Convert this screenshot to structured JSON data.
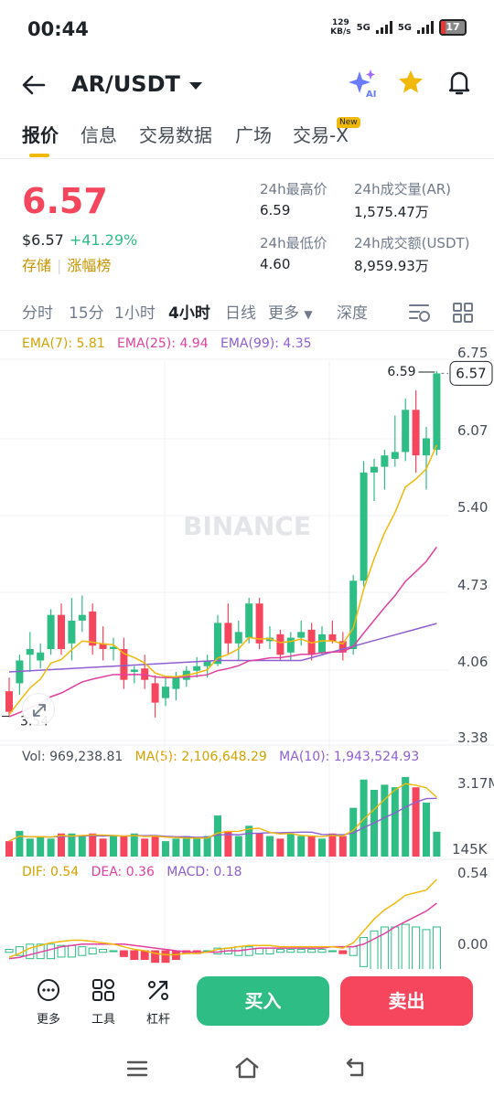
{
  "status_bar": {
    "time": "00:44",
    "net_speed": "129",
    "net_unit": "KB/s",
    "sim1": "5G",
    "sim2": "5G",
    "battery": "17"
  },
  "header": {
    "pair": "AR/USDT",
    "ai_badge": "AI"
  },
  "tabs": [
    {
      "label": "报价",
      "active": true
    },
    {
      "label": "信息"
    },
    {
      "label": "交易数据"
    },
    {
      "label": "广场"
    },
    {
      "label": "交易-X",
      "badge": "New"
    }
  ],
  "ticker": {
    "last_price": "6.57",
    "usd_price": "$6.57",
    "change": "+41.29%",
    "tag1": "存储",
    "tag2": "涨幅榜",
    "high_label": "24h最高价",
    "high": "6.59",
    "low_label": "24h最低价",
    "low": "4.60",
    "vol_ar_label": "24h成交量(AR)",
    "vol_ar": "1,575.47万",
    "vol_usdt_label": "24h成交额(USDT)",
    "vol_usdt": "8,959.93万"
  },
  "timeframes": [
    "分时",
    "15分",
    "1小时",
    "4小时",
    "日线",
    "更多",
    "深度"
  ],
  "active_timeframe": "4小时",
  "indicators": {
    "ema7": "EMA(7): 5.81",
    "ema25": "EMA(25): 4.94",
    "ema99": "EMA(99): 4.35",
    "vol": "Vol: 969,238.81",
    "ma5": "MA(5): 2,106,648.29",
    "ma10": "MA(10): 1,943,524.93",
    "dif": "DIF: 0.54",
    "dea": "DEA: 0.36",
    "macd": "MACD: 0.18"
  },
  "watermark": "BINANCE",
  "colors": {
    "up": "#2ebd85",
    "down": "#f6465d",
    "ema7": "#f0b90b",
    "ema25": "#e040a0",
    "ema99": "#8e5fd0",
    "accent": "#f0b90b"
  },
  "chart_data": {
    "type": "candlestick",
    "price_axis_ticks": [
      "6.75",
      "6.07",
      "5.40",
      "4.73",
      "4.06",
      "3.38"
    ],
    "high_marker": "6.59",
    "low_marker": "3.54",
    "current_price": "6.57",
    "volume_axis_ticks": [
      "3.17M",
      "145K"
    ],
    "macd_axis_ticks": [
      "0.54",
      "0.00"
    ],
    "candles": [
      {
        "o": 3.78,
        "h": 3.9,
        "l": 3.56,
        "c": 3.6
      },
      {
        "o": 3.85,
        "h": 4.1,
        "l": 3.75,
        "c": 4.05
      },
      {
        "o": 4.1,
        "h": 4.3,
        "l": 3.95,
        "c": 4.15
      },
      {
        "o": 4.05,
        "h": 4.2,
        "l": 3.98,
        "c": 4.12
      },
      {
        "o": 4.15,
        "h": 4.5,
        "l": 4.1,
        "c": 4.45
      },
      {
        "o": 4.45,
        "h": 4.55,
        "l": 4.1,
        "c": 4.15
      },
      {
        "o": 4.2,
        "h": 4.6,
        "l": 4.05,
        "c": 4.4
      },
      {
        "o": 4.4,
        "h": 4.62,
        "l": 4.3,
        "c": 4.45
      },
      {
        "o": 4.48,
        "h": 4.55,
        "l": 4.1,
        "c": 4.18
      },
      {
        "o": 4.2,
        "h": 4.35,
        "l": 4.05,
        "c": 4.15
      },
      {
        "o": 4.15,
        "h": 4.25,
        "l": 4.05,
        "c": 4.17
      },
      {
        "o": 4.15,
        "h": 4.25,
        "l": 3.8,
        "c": 3.88
      },
      {
        "o": 3.95,
        "h": 4.0,
        "l": 3.85,
        "c": 3.97
      },
      {
        "o": 3.98,
        "h": 4.1,
        "l": 3.8,
        "c": 3.88
      },
      {
        "o": 3.85,
        "h": 3.92,
        "l": 3.55,
        "c": 3.68
      },
      {
        "o": 3.72,
        "h": 3.9,
        "l": 3.65,
        "c": 3.82
      },
      {
        "o": 3.8,
        "h": 3.95,
        "l": 3.7,
        "c": 3.9
      },
      {
        "o": 3.88,
        "h": 4.0,
        "l": 3.82,
        "c": 3.96
      },
      {
        "o": 3.96,
        "h": 4.08,
        "l": 3.9,
        "c": 4.0
      },
      {
        "o": 4.0,
        "h": 4.1,
        "l": 3.9,
        "c": 4.05
      },
      {
        "o": 4.02,
        "h": 4.45,
        "l": 4.0,
        "c": 4.38
      },
      {
        "o": 4.38,
        "h": 4.55,
        "l": 4.1,
        "c": 4.2
      },
      {
        "o": 4.2,
        "h": 4.4,
        "l": 4.05,
        "c": 4.3
      },
      {
        "o": 4.25,
        "h": 4.6,
        "l": 4.2,
        "c": 4.55
      },
      {
        "o": 4.55,
        "h": 4.6,
        "l": 4.15,
        "c": 4.2
      },
      {
        "o": 4.22,
        "h": 4.35,
        "l": 4.15,
        "c": 4.25
      },
      {
        "o": 4.28,
        "h": 4.32,
        "l": 4.05,
        "c": 4.1
      },
      {
        "o": 4.12,
        "h": 4.3,
        "l": 4.05,
        "c": 4.25
      },
      {
        "o": 4.25,
        "h": 4.4,
        "l": 4.18,
        "c": 4.3
      },
      {
        "o": 4.32,
        "h": 4.38,
        "l": 4.05,
        "c": 4.1
      },
      {
        "o": 4.12,
        "h": 4.35,
        "l": 4.1,
        "c": 4.28
      },
      {
        "o": 4.28,
        "h": 4.4,
        "l": 4.2,
        "c": 4.22
      },
      {
        "o": 4.22,
        "h": 4.3,
        "l": 4.05,
        "c": 4.12
      },
      {
        "o": 4.15,
        "h": 4.8,
        "l": 4.1,
        "c": 4.75
      },
      {
        "o": 4.75,
        "h": 5.8,
        "l": 4.7,
        "c": 5.7
      },
      {
        "o": 5.7,
        "h": 5.82,
        "l": 5.45,
        "c": 5.75
      },
      {
        "o": 5.75,
        "h": 5.9,
        "l": 5.55,
        "c": 5.85
      },
      {
        "o": 5.82,
        "h": 6.2,
        "l": 5.75,
        "c": 5.88
      },
      {
        "o": 5.88,
        "h": 6.35,
        "l": 5.8,
        "c": 6.25
      },
      {
        "o": 6.25,
        "h": 6.42,
        "l": 5.7,
        "c": 5.85
      },
      {
        "o": 5.85,
        "h": 6.1,
        "l": 5.55,
        "c": 6.0
      },
      {
        "o": 5.9,
        "h": 6.59,
        "l": 5.85,
        "c": 6.57
      }
    ],
    "volumes": [
      0.6,
      1.0,
      0.7,
      0.8,
      0.7,
      0.9,
      0.9,
      0.8,
      0.9,
      0.7,
      0.8,
      0.8,
      0.9,
      0.7,
      0.8,
      0.6,
      0.7,
      0.8,
      0.7,
      0.8,
      1.6,
      1.0,
      0.8,
      1.2,
      0.9,
      0.8,
      0.7,
      0.9,
      0.8,
      0.8,
      0.7,
      0.9,
      0.8,
      1.9,
      3.0,
      2.6,
      2.8,
      2.7,
      3.1,
      2.7,
      2.1,
      0.97
    ],
    "dif": [
      -0.05,
      -0.02,
      0.02,
      0.04,
      0.06,
      0.07,
      0.08,
      0.08,
      0.07,
      0.06,
      0.05,
      0.03,
      0.01,
      0.0,
      -0.02,
      -0.03,
      -0.03,
      -0.02,
      -0.02,
      -0.01,
      0.01,
      0.02,
      0.03,
      0.04,
      0.04,
      0.04,
      0.03,
      0.03,
      0.03,
      0.03,
      0.03,
      0.03,
      0.02,
      0.06,
      0.15,
      0.24,
      0.31,
      0.36,
      0.42,
      0.44,
      0.46,
      0.54
    ],
    "dea": [
      -0.06,
      -0.05,
      -0.03,
      -0.01,
      0.01,
      0.03,
      0.04,
      0.05,
      0.05,
      0.05,
      0.05,
      0.05,
      0.04,
      0.03,
      0.02,
      0.01,
      0.0,
      -0.01,
      -0.01,
      -0.01,
      -0.01,
      0.0,
      0.0,
      0.01,
      0.02,
      0.02,
      0.02,
      0.02,
      0.02,
      0.02,
      0.02,
      0.03,
      0.03,
      0.03,
      0.05,
      0.09,
      0.13,
      0.18,
      0.22,
      0.26,
      0.3,
      0.36
    ]
  },
  "bottom_bar": {
    "more": "更多",
    "tools": "工具",
    "leverage": "杠杆",
    "buy": "买入",
    "sell": "卖出"
  }
}
